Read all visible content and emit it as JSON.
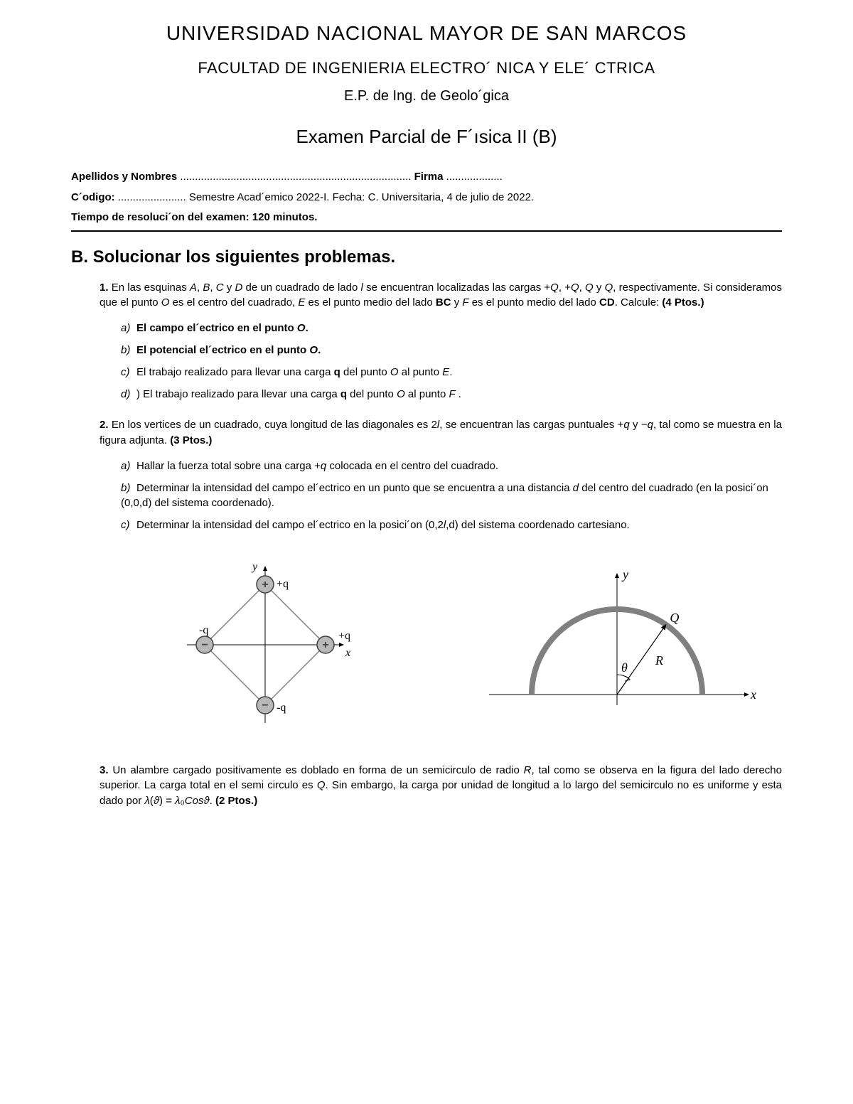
{
  "header": {
    "university": "UNIVERSIDAD NACIONAL MAYOR DE SAN MARCOS",
    "faculty": "FACULTAD DE INGENIERIA ELECTRO´ NICA Y ELE´ CTRICA",
    "ep": "E.P. de Ing. de Geolo´gica",
    "exam_title": "Examen Parcial de F´ısica II (B)"
  },
  "info": {
    "line1_label": "Apellidos y Nombres",
    "line1_dots": " .............................................................................. ",
    "line1_label2": "Firma",
    "line1_dots2": " ...................",
    "line2_a": "C´odigo:",
    "line2_dots": " ....................... ",
    "line2_b": "Semestre Acad´emico 2022-I. Fecha: C. Universitaria, 4 de julio de 2022.",
    "line3": "Tiempo de resoluci´on del examen: 120 minutos."
  },
  "section_title": "B. Solucionar los siguientes problemas.",
  "problems": [
    {
      "num": "1.",
      "text_parts": [
        {
          "t": "En las esquinas ",
          "i": false,
          "b": false
        },
        {
          "t": "A",
          "i": true,
          "b": false
        },
        {
          "t": ", ",
          "i": false,
          "b": false
        },
        {
          "t": "B",
          "i": true,
          "b": false
        },
        {
          "t": ", ",
          "i": false,
          "b": false
        },
        {
          "t": "C",
          "i": true,
          "b": false
        },
        {
          "t": " y ",
          "i": false,
          "b": false
        },
        {
          "t": "D",
          "i": true,
          "b": false
        },
        {
          "t": " de un cuadrado de lado ",
          "i": false,
          "b": false
        },
        {
          "t": "l",
          "i": true,
          "b": false
        },
        {
          "t": " se encuentran localizadas las cargas +",
          "i": false,
          "b": false
        },
        {
          "t": "Q",
          "i": true,
          "b": false
        },
        {
          "t": ", +",
          "i": false,
          "b": false
        },
        {
          "t": "Q",
          "i": true,
          "b": false
        },
        {
          "t": ", ",
          "i": false,
          "b": false
        },
        {
          "t": "Q ",
          "i": true,
          "b": false
        },
        {
          "t": "y ",
          "i": false,
          "b": false
        },
        {
          "t": "Q",
          "i": true,
          "b": false
        },
        {
          "t": ", respectivamente. Si consideramos que el punto ",
          "i": false,
          "b": false
        },
        {
          "t": "O",
          "i": true,
          "b": false
        },
        {
          "t": " es el centro del cuadrado, ",
          "i": false,
          "b": false
        },
        {
          "t": "E",
          "i": true,
          "b": false
        },
        {
          "t": " es el punto medio del lado ",
          "i": false,
          "b": false
        },
        {
          "t": "BC",
          "i": false,
          "b": true
        },
        {
          "t": " y ",
          "i": false,
          "b": false
        },
        {
          "t": "F",
          "i": true,
          "b": false
        },
        {
          "t": " es el punto medio del lado ",
          "i": false,
          "b": false
        },
        {
          "t": "CD",
          "i": false,
          "b": true
        },
        {
          "t": ". Calcule: ",
          "i": false,
          "b": false
        },
        {
          "t": "(4 Ptos.)",
          "i": false,
          "b": true
        }
      ],
      "subs": [
        {
          "label": "a)",
          "parts": [
            {
              "t": "El campo el´ectrico en el punto ",
              "b": true,
              "i": false
            },
            {
              "t": "O",
              "b": true,
              "i": true
            },
            {
              "t": ".",
              "b": true,
              "i": false
            }
          ]
        },
        {
          "label": "b)",
          "parts": [
            {
              "t": "El potencial el´ectrico en el punto ",
              "b": true,
              "i": false
            },
            {
              "t": "O",
              "b": true,
              "i": true
            },
            {
              "t": ".",
              "b": true,
              "i": false
            }
          ]
        },
        {
          "label": "c)",
          "parts": [
            {
              "t": "El trabajo realizado para llevar una carga ",
              "b": false,
              "i": false
            },
            {
              "t": "q",
              "b": true,
              "i": false
            },
            {
              "t": " del punto ",
              "b": false,
              "i": false
            },
            {
              "t": "O",
              "b": false,
              "i": true
            },
            {
              "t": " al punto ",
              "b": false,
              "i": false
            },
            {
              "t": "E",
              "b": false,
              "i": true
            },
            {
              "t": ".",
              "b": false,
              "i": false
            }
          ]
        },
        {
          "label": "d)",
          "parts": [
            {
              "t": ") El trabajo realizado para llevar una carga ",
              "b": false,
              "i": false
            },
            {
              "t": "q",
              "b": true,
              "i": false
            },
            {
              "t": " del punto ",
              "b": false,
              "i": false
            },
            {
              "t": "O",
              "b": false,
              "i": true
            },
            {
              "t": " al punto ",
              "b": false,
              "i": false
            },
            {
              "t": "F",
              "b": false,
              "i": true
            },
            {
              "t": " .",
              "b": false,
              "i": false
            }
          ]
        }
      ]
    },
    {
      "num": "2.",
      "text_parts": [
        {
          "t": "En los vertices de un cuadrado, cuya longitud de las diagonales es 2",
          "i": false,
          "b": false
        },
        {
          "t": "l",
          "i": true,
          "b": false
        },
        {
          "t": ", se encuentran las cargas puntuales +",
          "i": false,
          "b": false
        },
        {
          "t": "q",
          "i": true,
          "b": false
        },
        {
          "t": " y −",
          "i": false,
          "b": false
        },
        {
          "t": "q",
          "i": true,
          "b": false
        },
        {
          "t": ", tal como se muestra en la figura adjunta. ",
          "i": false,
          "b": false
        },
        {
          "t": "(3 Ptos.)",
          "i": false,
          "b": true
        }
      ],
      "subs": [
        {
          "label": "a)",
          "parts": [
            {
              "t": "Hallar la fuerza total sobre una carga +",
              "b": false,
              "i": false
            },
            {
              "t": "q",
              "b": false,
              "i": true
            },
            {
              "t": " colocada en el centro del cuadrado.",
              "b": false,
              "i": false
            }
          ]
        },
        {
          "label": "b)",
          "parts": [
            {
              "t": "Determinar la intensidad del campo el´ectrico en un punto que se encuentra a una distancia ",
              "b": false,
              "i": false
            },
            {
              "t": "d",
              "b": false,
              "i": true
            },
            {
              "t": " del centro del cuadrado (en la posici´on (0,0,d) del sistema coordenado).",
              "b": false,
              "i": false
            }
          ]
        },
        {
          "label": "c)",
          "parts": [
            {
              "t": "Determinar la intensidad del campo el´ectrico en la posici´on (0,2",
              "b": false,
              "i": false
            },
            {
              "t": "l",
              "b": false,
              "i": true
            },
            {
              "t": ",d) del sistema coordenado cartesiano.",
              "b": false,
              "i": false
            }
          ]
        }
      ]
    },
    {
      "num": "3.",
      "text_parts": [
        {
          "t": "Un alambre cargado positivamente es doblado en forma de un semicirculo de radio ",
          "i": false,
          "b": false
        },
        {
          "t": "R",
          "i": true,
          "b": false
        },
        {
          "t": ", tal como se observa en la figura del lado derecho superior. La carga total en el semi circulo es ",
          "i": false,
          "b": false
        },
        {
          "t": "Q",
          "i": true,
          "b": false
        },
        {
          "t": ". Sin embargo, la carga por unidad de longitud a lo largo del semicirculo no es uniforme y esta dado por ",
          "i": false,
          "b": false
        },
        {
          "t": "λ",
          "i": true,
          "b": false
        },
        {
          "t": "(",
          "i": false,
          "b": false
        },
        {
          "t": "ϑ",
          "i": true,
          "b": false
        },
        {
          "t": ") = ",
          "i": false,
          "b": false
        },
        {
          "t": "λ",
          "i": true,
          "b": false
        },
        {
          "t": "₀",
          "i": false,
          "b": false
        },
        {
          "t": "Cosϑ",
          "i": true,
          "b": false
        },
        {
          "t": ". ",
          "i": false,
          "b": false
        },
        {
          "t": "(2 Ptos.)",
          "i": false,
          "b": true
        }
      ],
      "subs": []
    }
  ],
  "figure1": {
    "axis_color": "#000000",
    "line_color": "#808080",
    "charge_fill": "#b8b8b8",
    "charge_stroke": "#404040",
    "label_fontsize": 16,
    "labels": {
      "top": "+q",
      "right": "+q",
      "bottom": "-q",
      "left": "-q",
      "x": "x",
      "y": "y"
    },
    "charge_radius": 12,
    "half_diag": 85
  },
  "figure2": {
    "axis_color": "#000000",
    "arc_color": "#808080",
    "arc_stroke_width": 8,
    "radius": 120,
    "labels": {
      "Q": "Q",
      "R": "R",
      "theta": "θ",
      "x": "x",
      "y": "y"
    },
    "label_fontsize": 18
  },
  "colors": {
    "text": "#000000",
    "background": "#ffffff"
  }
}
